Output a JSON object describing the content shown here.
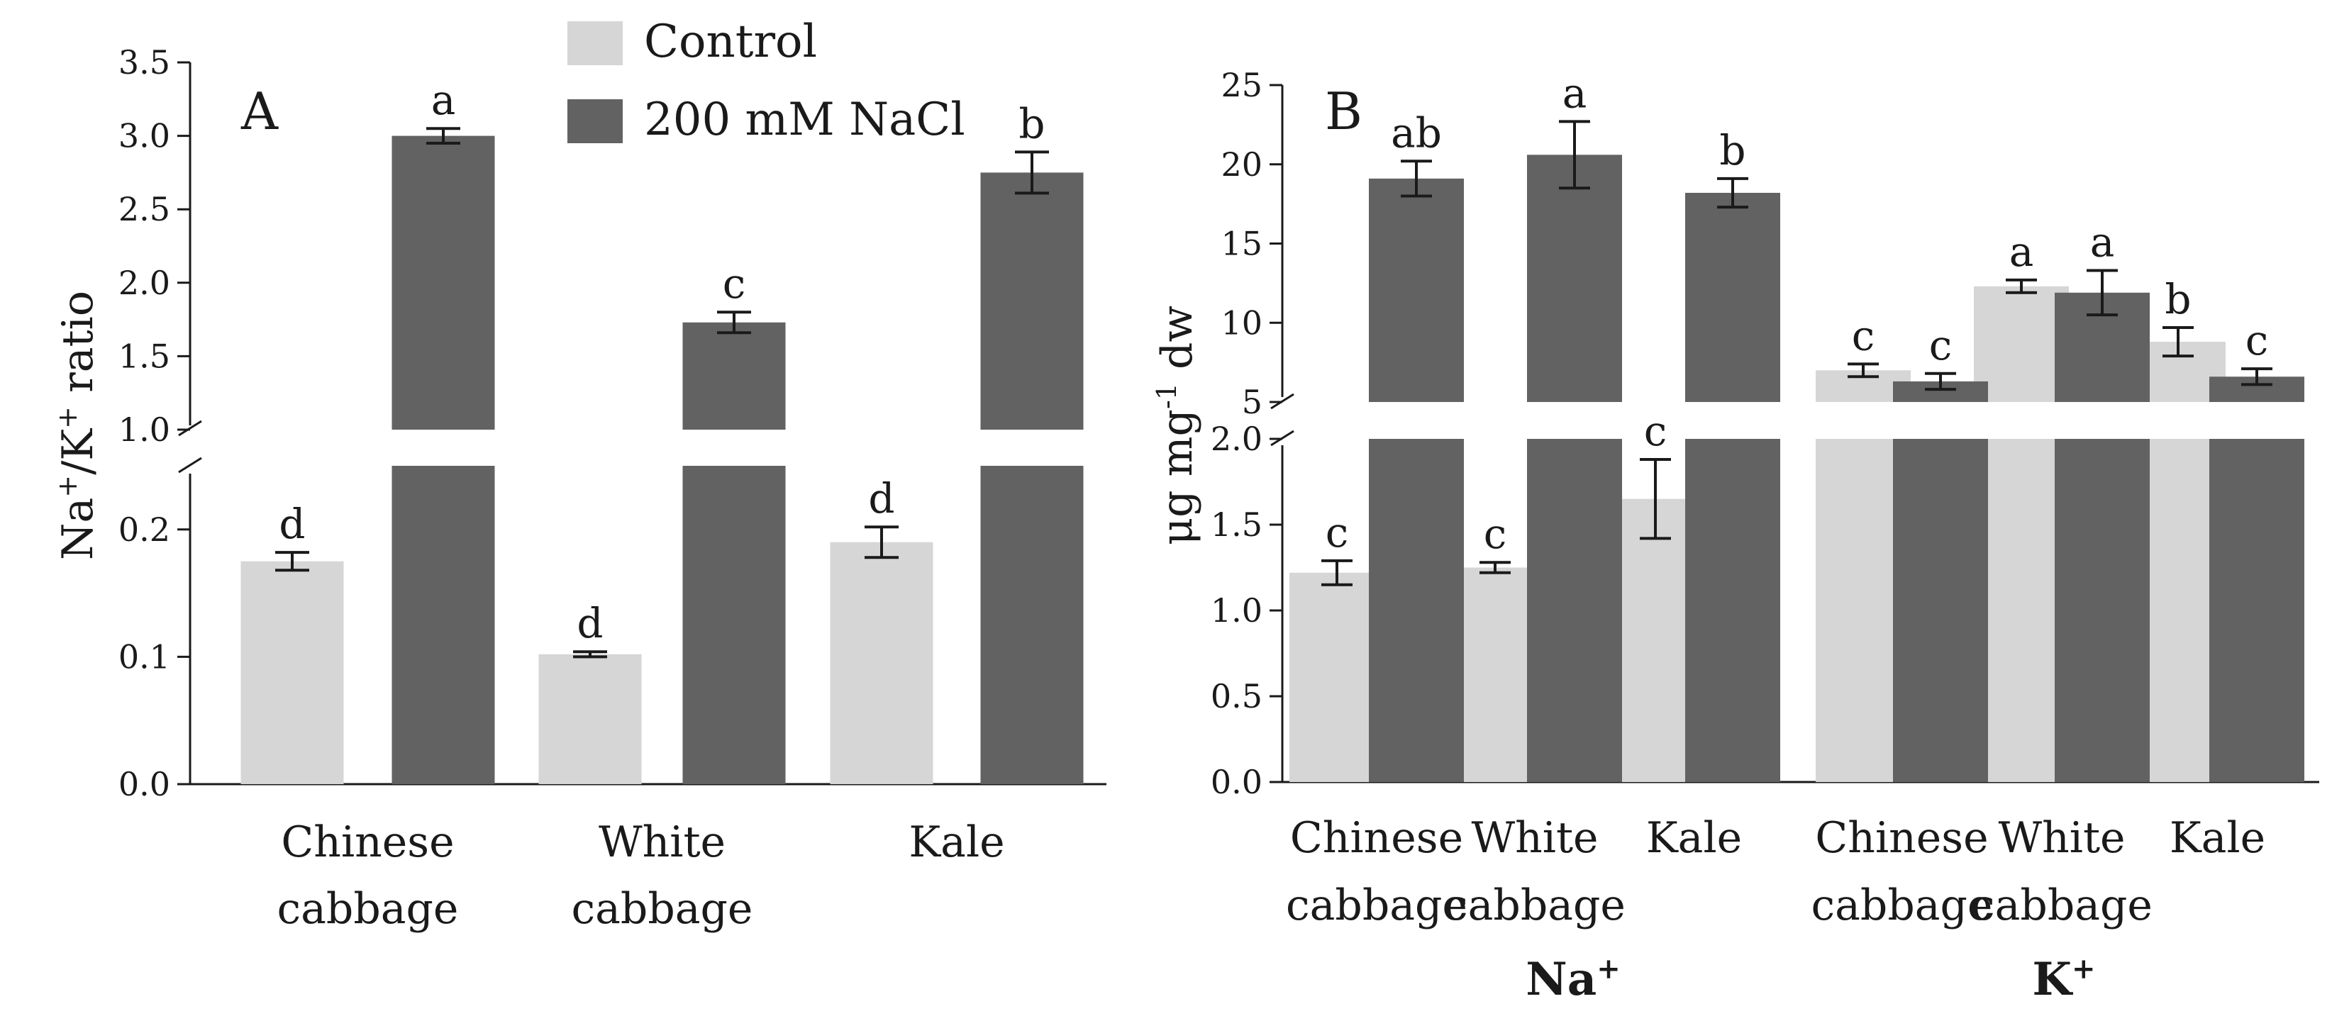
{
  "chart_data": [
    {
      "panel": "A",
      "type": "bar",
      "ylabel": {
        "pre": "Na",
        "sup1": "+",
        "mid": "/K",
        "sup2": "+",
        "post": " ratio"
      },
      "categories": [
        {
          "line1": "Chinese",
          "line2": "cabbage"
        },
        {
          "line1": "White",
          "line2": "cabbage"
        },
        {
          "line1": "Kale",
          "line2": ""
        }
      ],
      "legend": {
        "position": "top-center",
        "control": "Control",
        "nacl": "200 mM NaCl"
      },
      "axis_lower": {
        "range": [
          0,
          0.25
        ],
        "ticks": [
          "0.0",
          "0.1",
          "0.2"
        ],
        "tick_values": [
          0,
          0.1,
          0.2
        ]
      },
      "axis_upper": {
        "range": [
          1.0,
          3.5
        ],
        "ticks": [
          "1.0",
          "1.5",
          "2.0",
          "2.5",
          "3.0",
          "3.5"
        ],
        "tick_values": [
          1.0,
          1.5,
          2.0,
          2.5,
          3.0,
          3.5
        ]
      },
      "series": [
        {
          "name": "Control",
          "color": "#d6d6d6",
          "values": [
            0.175,
            0.102,
            0.19
          ],
          "errors": [
            0.007,
            0.002,
            0.012
          ],
          "letters": [
            "d",
            "d",
            "d"
          ]
        },
        {
          "name": "200 mM NaCl",
          "color": "#626262",
          "values": [
            3.0,
            1.73,
            2.75
          ],
          "errors": [
            0.05,
            0.07,
            0.14
          ],
          "letters": [
            "a",
            "c",
            "b"
          ]
        }
      ]
    },
    {
      "panel": "B",
      "type": "bar",
      "ylabel": {
        "pre": "μg mg",
        "sup": "-1",
        "post": " dw"
      },
      "groups": [
        {
          "name": "Na",
          "sup": "+"
        },
        {
          "name": "K",
          "sup": "+"
        }
      ],
      "categories": [
        {
          "line1": "Chinese",
          "line2": "cabbage"
        },
        {
          "line1": "White",
          "line2": "cabbage"
        },
        {
          "line1": "Kale",
          "line2": ""
        }
      ],
      "axis_lower": {
        "range": [
          0,
          2.0
        ],
        "ticks": [
          "0.0",
          "0.5",
          "1.0",
          "1.5",
          "2.0"
        ],
        "tick_values": [
          0,
          0.5,
          1.0,
          1.5,
          2.0
        ]
      },
      "axis_upper": {
        "range": [
          5,
          25
        ],
        "ticks": [
          "5",
          "10",
          "15",
          "20",
          "25"
        ],
        "tick_values": [
          5,
          10,
          15,
          20,
          25
        ]
      },
      "series": [
        {
          "name": "Control",
          "color": "#d6d6d6",
          "na_values": [
            1.22,
            1.25,
            1.65
          ],
          "na_errors": [
            0.07,
            0.03,
            0.23
          ],
          "na_letters": [
            "c",
            "c",
            "c"
          ],
          "k_values": [
            7.0,
            12.3,
            8.8
          ],
          "k_errors": [
            0.4,
            0.4,
            0.9
          ],
          "k_letters": [
            "c",
            "a",
            "b"
          ]
        },
        {
          "name": "200 mM NaCl",
          "color": "#626262",
          "na_values": [
            19.1,
            20.6,
            18.2
          ],
          "na_errors": [
            1.1,
            2.1,
            0.9
          ],
          "na_letters": [
            "ab",
            "a",
            "b"
          ],
          "k_values": [
            6.3,
            11.9,
            6.6
          ],
          "k_errors": [
            0.5,
            1.4,
            0.5
          ],
          "k_letters": [
            "c",
            "a",
            "c"
          ]
        }
      ]
    }
  ]
}
